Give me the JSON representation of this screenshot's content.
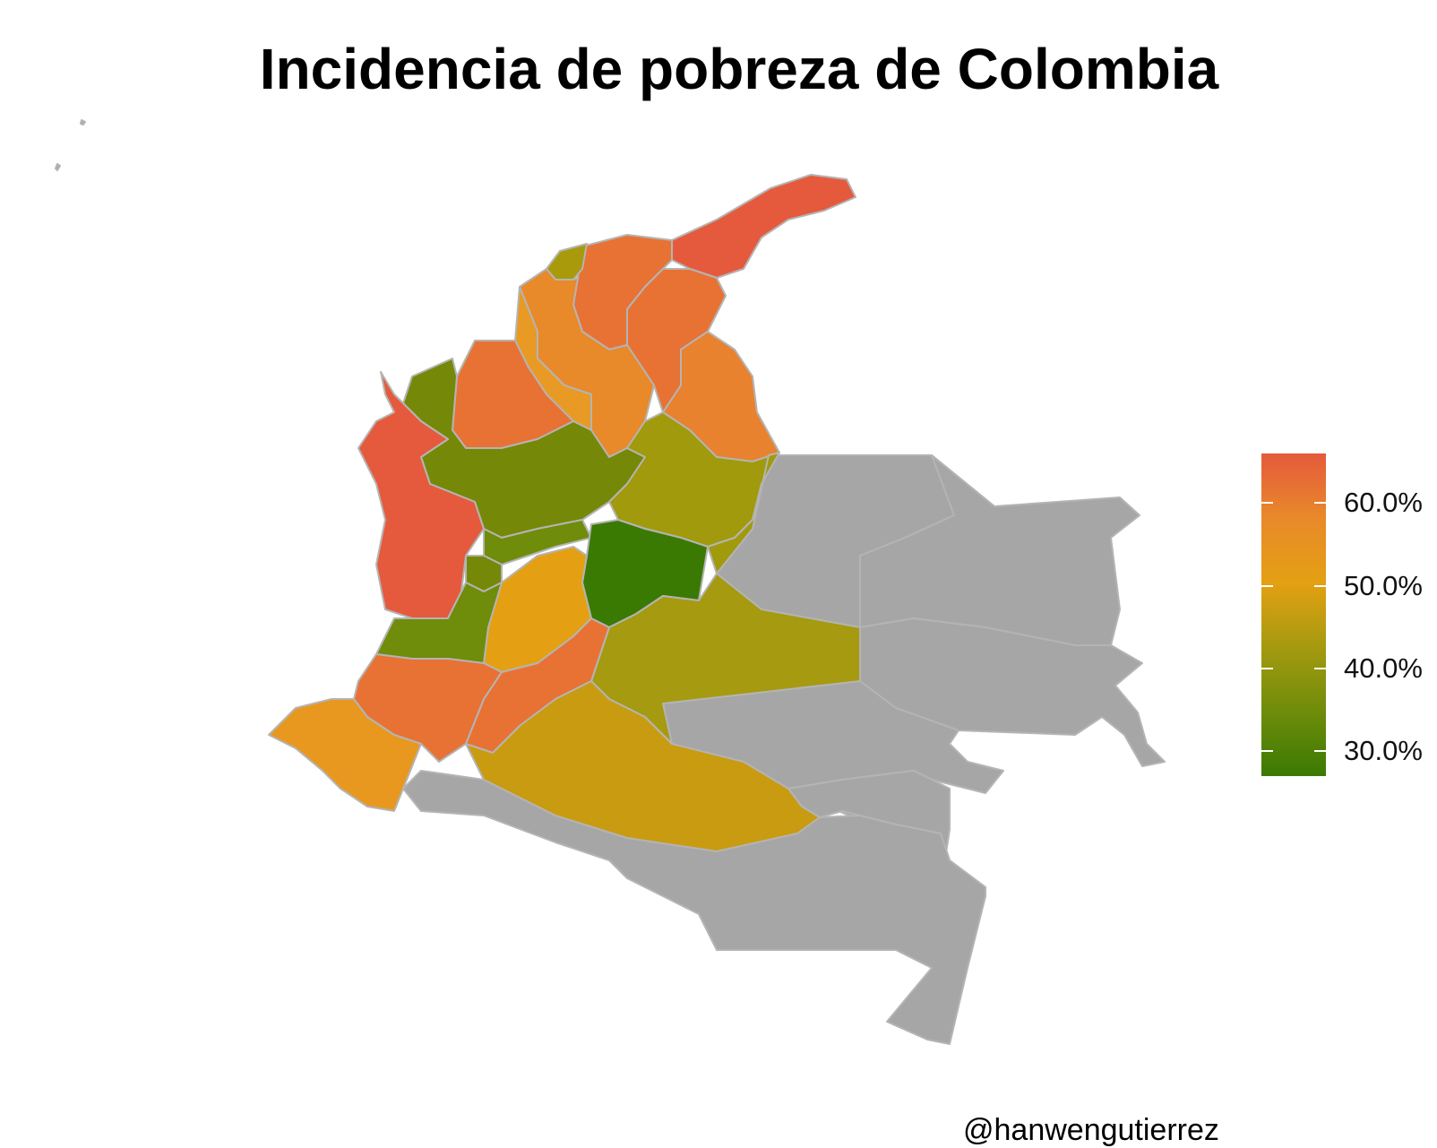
{
  "title": "Incidencia de pobreza de Colombia",
  "credit": "@hanwengutierrez",
  "legend": {
    "gradient_colors": [
      "#e55a3c",
      "#e8892a",
      "#e4a012",
      "#a59a10",
      "#6f8c0a",
      "#3a7a03"
    ],
    "ticks": [
      {
        "label": "60.0%",
        "value": 60
      },
      {
        "label": "50.0%",
        "value": 50
      },
      {
        "label": "40.0%",
        "value": 40
      },
      {
        "label": "30.0%",
        "value": 30
      }
    ],
    "min_value": 27,
    "max_value": 66
  },
  "colors": {
    "no_data": "#a6a6a6",
    "border": "#b4b4b4"
  }
}
